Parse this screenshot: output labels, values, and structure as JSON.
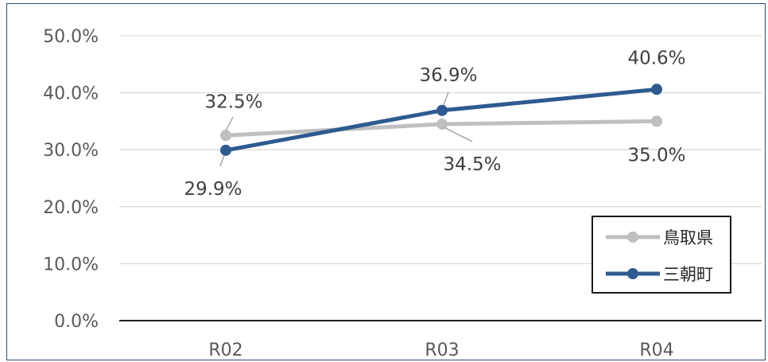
{
  "chart_data": {
    "type": "line",
    "categories": [
      "R02",
      "R03",
      "R04"
    ],
    "ylim": [
      0,
      0.5
    ],
    "yticks": [
      "0.0%",
      "10.0%",
      "20.0%",
      "30.0%",
      "40.0%",
      "50.0%"
    ],
    "grid": true,
    "legend_position": "bottom-right",
    "series": [
      {
        "name": "鳥取県",
        "color": "#bfbfbf",
        "values": [
          0.325,
          0.345,
          0.35
        ],
        "labels": [
          "32.5%",
          "34.5%",
          "35.0%"
        ]
      },
      {
        "name": "三朝町",
        "color": "#2e5a8f",
        "values": [
          0.299,
          0.369,
          0.406
        ],
        "labels": [
          "29.9%",
          "36.9%",
          "40.6%"
        ]
      }
    ]
  }
}
